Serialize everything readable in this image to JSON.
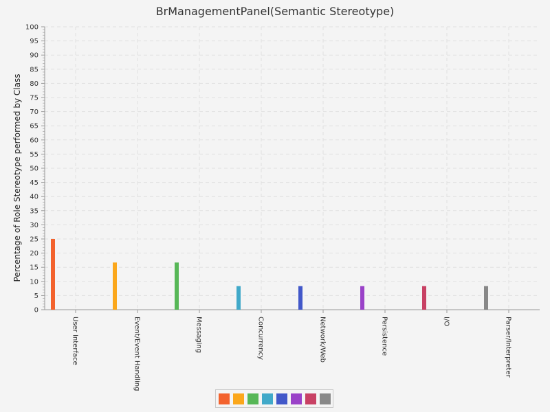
{
  "chart_data": {
    "type": "bar",
    "title": "BrManagementPanel(Semantic Stereotype)",
    "xlabel": "",
    "ylabel": "Percentage of Role Stereotype performed by Class",
    "ylim": [
      0,
      100
    ],
    "ytick_step": 5,
    "grid": true,
    "legend_position": "bottom-center",
    "categories": [
      "User Interface",
      "Event/Event Handling",
      "Messaging",
      "Concurrency",
      "Network/Web",
      "Persistence",
      "I/O",
      "Parser/Interpreter"
    ],
    "values": [
      25,
      16.67,
      16.67,
      8.33,
      8.33,
      8.33,
      8.33,
      8.33
    ],
    "colors": [
      "#f3622d",
      "#fba71b",
      "#57b757",
      "#41a9c9",
      "#4258c9",
      "#9a42c8",
      "#c84164",
      "#888888"
    ]
  }
}
